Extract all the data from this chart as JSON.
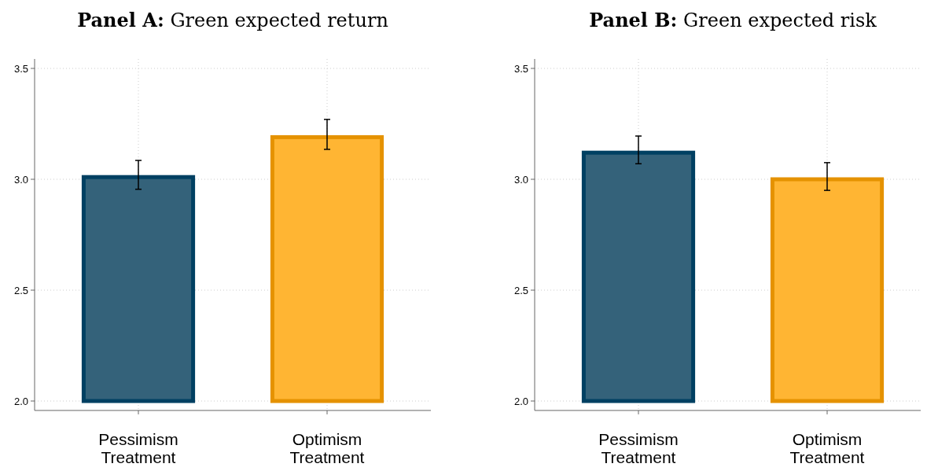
{
  "chart_data": [
    {
      "type": "bar",
      "title": "Panel A: Green expected return",
      "categories": [
        "Pessimism\nTreatment",
        "Optimism\nTreatment"
      ],
      "values": [
        3.01,
        3.19
      ],
      "colors": [
        "#34627a",
        "#ffb533"
      ],
      "errors": [
        [
          2.955,
          3.085
        ],
        [
          3.135,
          3.27
        ]
      ],
      "ylim": [
        2.0,
        3.5
      ],
      "yticks": [
        {
          "value": 2.0,
          "label": "2.0"
        },
        {
          "value": 2.5,
          "label": "2.5"
        },
        {
          "value": 3.0,
          "label": "3.0"
        },
        {
          "value": 3.5,
          "label": "3.5"
        }
      ],
      "grid": true
    },
    {
      "type": "bar",
      "title": "Panel B: Green expected risk",
      "categories": [
        "Pessimism\nTreatment",
        "Optimism\nTreatment"
      ],
      "values": [
        3.12,
        3.0
      ],
      "colors": [
        "#34627a",
        "#ffb533"
      ],
      "errors": [
        [
          3.07,
          3.195
        ],
        [
          2.95,
          3.075
        ]
      ],
      "ylim": [
        2.0,
        3.5
      ],
      "yticks": [
        {
          "value": 2.0,
          "label": "2.0"
        },
        {
          "value": 2.5,
          "label": "2.5"
        },
        {
          "value": 3.0,
          "label": "3.0"
        },
        {
          "value": 3.5,
          "label": "3.5"
        }
      ],
      "grid": true
    }
  ]
}
